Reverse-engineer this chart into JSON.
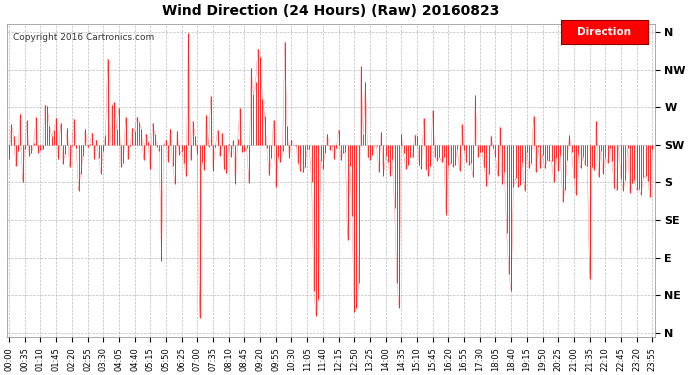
{
  "title": "Wind Direction (24 Hours) (Raw) 20160823",
  "copyright": "Copyright 2016 Cartronics.com",
  "legend_label": "Direction",
  "line_color": "#ff0000",
  "dark_line_color": "#555555",
  "background_color": "#ffffff",
  "grid_color": "#aaaaaa",
  "ytick_labels": [
    "N",
    "NW",
    "W",
    "SW",
    "S",
    "SE",
    "E",
    "NE",
    "N"
  ],
  "ytick_values": [
    360,
    315,
    270,
    225,
    180,
    135,
    90,
    45,
    0
  ],
  "ylim": [
    -5,
    370
  ],
  "figsize": [
    6.9,
    3.75
  ],
  "dpi": 100,
  "seed": 123
}
